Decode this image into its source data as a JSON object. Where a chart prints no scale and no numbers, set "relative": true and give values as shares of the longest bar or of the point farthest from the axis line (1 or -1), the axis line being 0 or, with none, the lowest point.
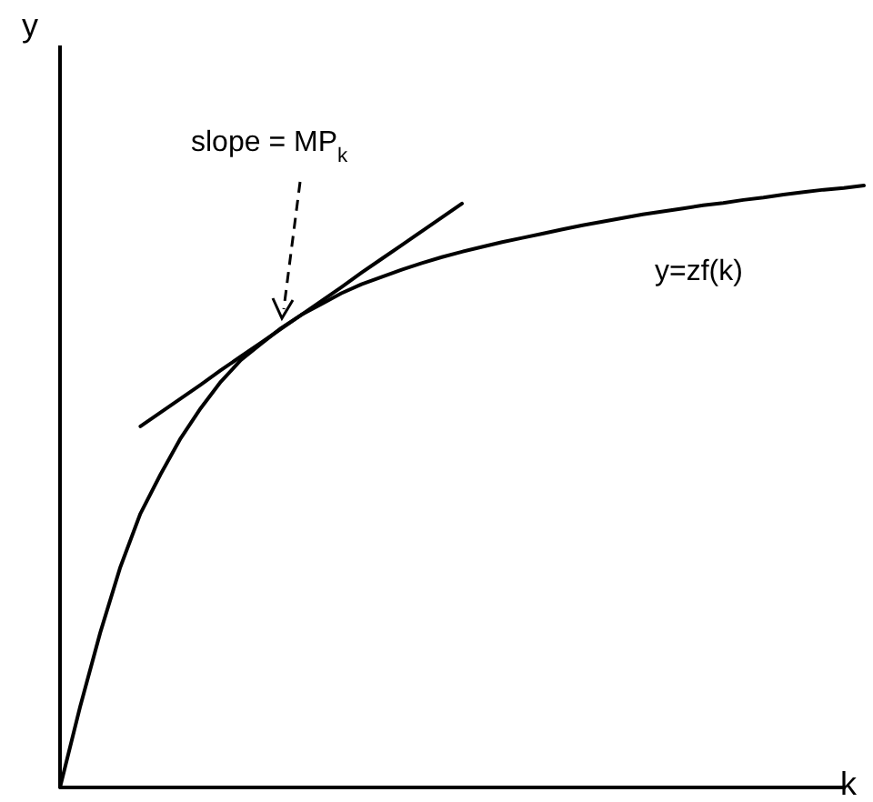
{
  "chart_data": {
    "type": "line",
    "relative": true,
    "xlabel": "k",
    "ylabel": "y",
    "marker": "none",
    "line_style": "solid",
    "categories": [
      null,
      null,
      null,
      null,
      null,
      null,
      null,
      null,
      null,
      null,
      null,
      null,
      null,
      null,
      null,
      null,
      null,
      null,
      null,
      null,
      null,
      null,
      null,
      null,
      null,
      null,
      null,
      null,
      null,
      null,
      null,
      null,
      null,
      null,
      null,
      null,
      null,
      null,
      null,
      null,
      null
    ],
    "series": [
      {
        "name": "y=zf(k)",
        "color": "#000000",
        "values": [
          0,
          0.134,
          0.257,
          0.366,
          0.455,
          0.52,
          0.58,
          0.63,
          0.674,
          0.71,
          0.737,
          0.763,
          0.785,
          0.803,
          0.821,
          0.836,
          0.848,
          0.86,
          0.871,
          0.881,
          0.89,
          0.898,
          0.906,
          0.913,
          0.92,
          0.927,
          0.934,
          0.94,
          0.946,
          0.952,
          0.957,
          0.962,
          0.967,
          0.971,
          0.976,
          0.98,
          0.985,
          0.989,
          0.993,
          0.996,
          1
        ]
      },
      {
        "color": "#000000",
        "values": [
          null,
          null,
          null,
          null,
          0.6,
          0.623,
          0.646,
          0.669,
          0.693,
          0.716,
          0.739,
          0.762,
          0.785,
          0.808,
          0.831,
          0.855,
          0.878,
          0.901,
          0.924,
          0.947,
          0.97,
          null,
          null,
          null,
          null,
          null,
          null,
          null,
          null,
          null,
          null,
          null,
          null,
          null,
          null,
          null,
          null,
          null,
          null,
          null,
          null
        ]
      }
    ],
    "annotations": [
      "slope = MP$_{k}$"
    ]
  }
}
